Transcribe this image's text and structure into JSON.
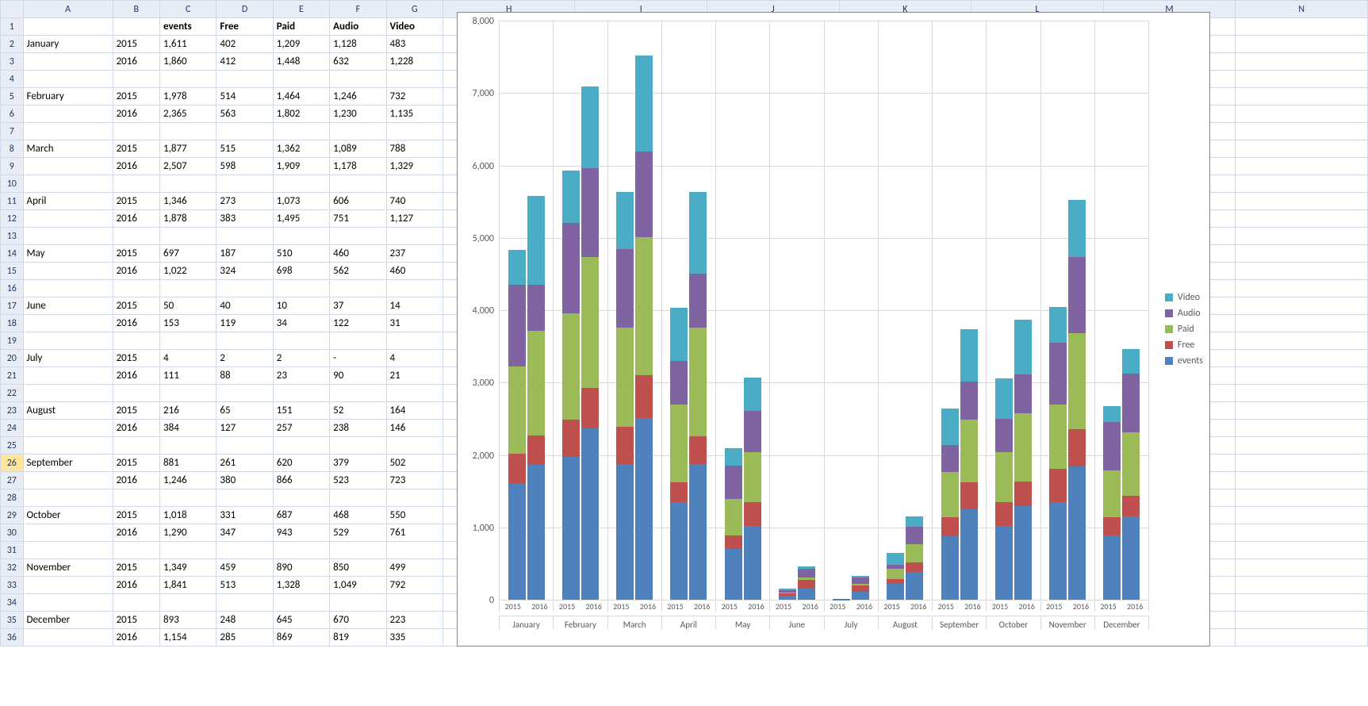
{
  "columns": [
    "A",
    "B",
    "C",
    "D",
    "E",
    "F",
    "G",
    "H",
    "I",
    "J",
    "K",
    "L",
    "M",
    "N"
  ],
  "header_row": [
    "",
    "",
    "events",
    "Free",
    "Paid",
    "Audio",
    "Video"
  ],
  "months": [
    "January",
    "February",
    "March",
    "April",
    "May",
    "June",
    "July",
    "August",
    "September",
    "October",
    "November",
    "December"
  ],
  "years": [
    "2015",
    "2016"
  ],
  "data": {
    "January": {
      "2015": {
        "events": 1611,
        "Free": 402,
        "Paid": 1209,
        "Audio": 1128,
        "Video": 483
      },
      "2016": {
        "events": 1860,
        "Free": 412,
        "Paid": 1448,
        "Audio": 632,
        "Video": 1228
      }
    },
    "February": {
      "2015": {
        "events": 1978,
        "Free": 514,
        "Paid": 1464,
        "Audio": 1246,
        "Video": 732
      },
      "2016": {
        "events": 2365,
        "Free": 563,
        "Paid": 1802,
        "Audio": 1230,
        "Video": 1135
      }
    },
    "March": {
      "2015": {
        "events": 1877,
        "Free": 515,
        "Paid": 1362,
        "Audio": 1089,
        "Video": 788
      },
      "2016": {
        "events": 2507,
        "Free": 598,
        "Paid": 1909,
        "Audio": 1178,
        "Video": 1329
      }
    },
    "April": {
      "2015": {
        "events": 1346,
        "Free": 273,
        "Paid": 1073,
        "Audio": 606,
        "Video": 740
      },
      "2016": {
        "events": 1878,
        "Free": 383,
        "Paid": 1495,
        "Audio": 751,
        "Video": 1127
      }
    },
    "May": {
      "2015": {
        "events": 697,
        "Free": 187,
        "Paid": 510,
        "Audio": 460,
        "Video": 237
      },
      "2016": {
        "events": 1022,
        "Free": 324,
        "Paid": 698,
        "Audio": 562,
        "Video": 460
      }
    },
    "June": {
      "2015": {
        "events": 50,
        "Free": 40,
        "Paid": 10,
        "Audio": 37,
        "Video": 14
      },
      "2016": {
        "events": 153,
        "Free": 119,
        "Paid": 34,
        "Audio": 122,
        "Video": 31
      }
    },
    "July": {
      "2015": {
        "events": 4,
        "Free": 2,
        "Paid": 2,
        "Audio": null,
        "Video": 4
      },
      "2016": {
        "events": 111,
        "Free": 88,
        "Paid": 23,
        "Audio": 90,
        "Video": 21
      }
    },
    "August": {
      "2015": {
        "events": 216,
        "Free": 65,
        "Paid": 151,
        "Audio": 52,
        "Video": 164
      },
      "2016": {
        "events": 384,
        "Free": 127,
        "Paid": 257,
        "Audio": 238,
        "Video": 146
      }
    },
    "September": {
      "2015": {
        "events": 881,
        "Free": 261,
        "Paid": 620,
        "Audio": 379,
        "Video": 502
      },
      "2016": {
        "events": 1246,
        "Free": 380,
        "Paid": 866,
        "Audio": 523,
        "Video": 723
      }
    },
    "October": {
      "2015": {
        "events": 1018,
        "Free": 331,
        "Paid": 687,
        "Audio": 468,
        "Video": 550
      },
      "2016": {
        "events": 1290,
        "Free": 347,
        "Paid": 943,
        "Audio": 529,
        "Video": 761
      }
    },
    "November": {
      "2015": {
        "events": 1349,
        "Free": 459,
        "Paid": 890,
        "Audio": 850,
        "Video": 499
      },
      "2016": {
        "events": 1841,
        "Free": 513,
        "Paid": 1328,
        "Audio": 1049,
        "Video": 792
      }
    },
    "December": {
      "2015": {
        "events": 893,
        "Free": 248,
        "Paid": 645,
        "Audio": 670,
        "Video": 223
      },
      "2016": {
        "events": 1154,
        "Free": 285,
        "Paid": 869,
        "Audio": 819,
        "Video": 335
      }
    }
  },
  "selected_row": 26,
  "chart": {
    "type": "stacked-bar",
    "ymax": 8000,
    "ytick_step": 1000,
    "series_order": [
      "events",
      "Free",
      "Paid",
      "Audio",
      "Video"
    ],
    "colors": {
      "events": "#4f81bd",
      "Free": "#c0504d",
      "Paid": "#9bbb59",
      "Audio": "#8064a2",
      "Video": "#4bacc6"
    },
    "legend_order": [
      "Video",
      "Audio",
      "Paid",
      "Free",
      "events"
    ],
    "grid_color": "#d9d9d9",
    "label_color": "#595959",
    "label_fontsize": 12,
    "background": "#ffffff"
  }
}
